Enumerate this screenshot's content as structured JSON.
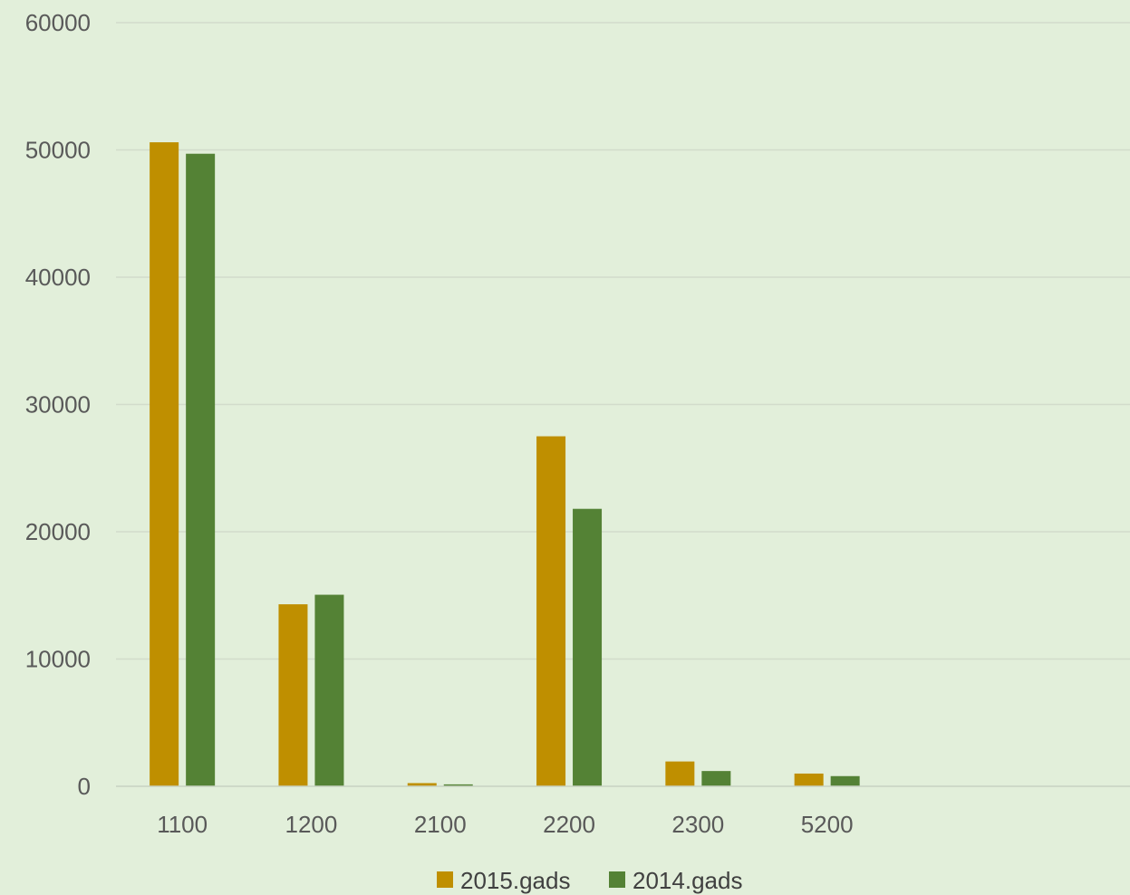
{
  "chart_data": {
    "type": "bar",
    "title": "",
    "xlabel": "",
    "ylabel": "",
    "categories": [
      "1100",
      "1200",
      "2100",
      "2200",
      "2300",
      "5200"
    ],
    "series": [
      {
        "name": "2015.gads",
        "color": "#bf8f00",
        "values": [
          50600,
          14300,
          250,
          27500,
          1950,
          1000
        ]
      },
      {
        "name": "2014.gads",
        "color": "#548235",
        "values": [
          49700,
          15050,
          150,
          21800,
          1200,
          800
        ]
      }
    ],
    "ylim": [
      0,
      60000
    ],
    "yticks": [
      "0",
      "10000",
      "20000",
      "30000",
      "40000",
      "50000",
      "60000"
    ],
    "grid": true,
    "legend_position": "bottom"
  }
}
